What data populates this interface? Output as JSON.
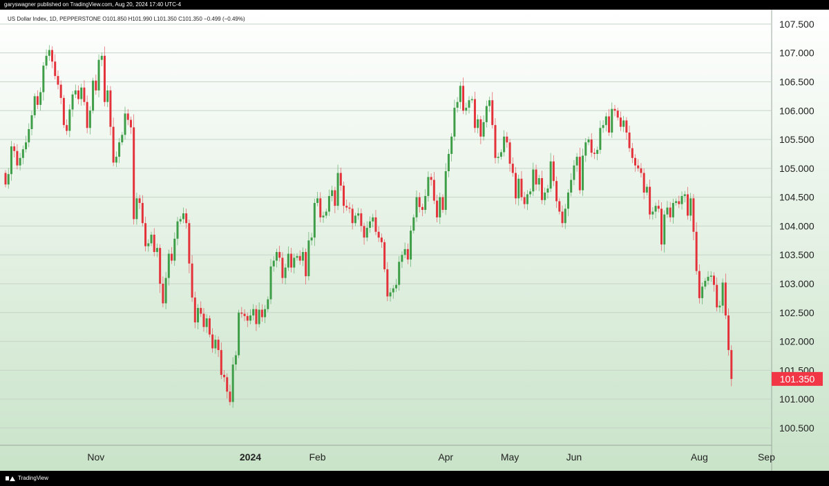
{
  "publisher_line": "garyswagner published on TradingView.com, Aug 20, 2024 17:40 UTC-4",
  "legend_line": "US Dollar Index, 1D, PEPPERSTONE  O101.850  H101.990  L101.350  C101.350  −0.499 (−0.49%)",
  "footer": {
    "brand": "TradingView"
  },
  "colors": {
    "up": "#3e9e48",
    "down": "#e4323b",
    "grid": "#c6d4c8",
    "bg_top": "#ffffff",
    "bg_bottom": "#c9e3c9",
    "price_tag": "#f23645"
  },
  "icons": {
    "logo": "tradingview-logo-icon"
  },
  "chart_data": {
    "type": "candlestick",
    "title": "",
    "xlabel": "",
    "ylabel": "",
    "ylim": [
      100.2,
      107.75
    ],
    "y_ticks": [
      100.5,
      101.0,
      101.5,
      102.0,
      102.5,
      103.0,
      103.5,
      104.0,
      104.5,
      105.0,
      105.5,
      106.0,
      106.5,
      107.0,
      107.5
    ],
    "y_tick_labels": [
      "100.500",
      "101.000",
      "101.500",
      "102.000",
      "102.500",
      "103.000",
      "103.500",
      "104.000",
      "104.500",
      "105.000",
      "105.500",
      "106.000",
      "106.500",
      "107.000",
      "107.500"
    ],
    "x_ticks": [
      {
        "label": "Nov",
        "index": 31,
        "bold": false
      },
      {
        "label": "2024",
        "index": 84,
        "bold": true
      },
      {
        "label": "Feb",
        "index": 107,
        "bold": false
      },
      {
        "label": "Apr",
        "index": 151,
        "bold": false
      },
      {
        "label": "May",
        "index": 173,
        "bold": false
      },
      {
        "label": "Jun",
        "index": 195,
        "bold": false
      },
      {
        "label": "Aug",
        "index": 238,
        "bold": false
      },
      {
        "label": "Sep",
        "index": 261,
        "bold": false
      }
    ],
    "last_price_label": "101.350",
    "last_price": 101.35,
    "closes": [
      104.72,
      104.9,
      105.38,
      105.3,
      105.05,
      105.18,
      105.33,
      105.45,
      105.68,
      105.92,
      106.25,
      106.1,
      106.32,
      106.78,
      106.95,
      107.05,
      106.85,
      106.6,
      106.45,
      106.22,
      105.75,
      105.65,
      106.02,
      106.28,
      106.35,
      106.2,
      106.4,
      106.15,
      105.7,
      106.0,
      106.52,
      106.35,
      106.88,
      106.95,
      106.15,
      106.35,
      105.72,
      105.1,
      105.2,
      105.45,
      105.58,
      105.95,
      105.84,
      105.71,
      104.12,
      104.48,
      104.4,
      104.05,
      103.65,
      103.7,
      103.85,
      103.55,
      103.62,
      103.0,
      102.66,
      103.1,
      103.52,
      103.4,
      103.78,
      104.08,
      104.12,
      104.22,
      104.05,
      103.35,
      102.76,
      102.33,
      102.58,
      102.48,
      102.25,
      102.4,
      102.12,
      101.88,
      102.03,
      101.85,
      101.42,
      101.38,
      101.13,
      100.95,
      101.6,
      101.76,
      102.5,
      102.48,
      102.44,
      102.36,
      102.45,
      102.56,
      102.3,
      102.55,
      102.42,
      102.56,
      102.73,
      103.3,
      103.4,
      103.55,
      103.45,
      103.1,
      103.28,
      103.52,
      103.28,
      103.45,
      103.48,
      103.4,
      103.55,
      103.13,
      103.75,
      103.8,
      104.4,
      104.48,
      104.15,
      104.18,
      104.25,
      104.52,
      104.62,
      104.35,
      104.92,
      104.7,
      104.35,
      104.32,
      104.3,
      104.05,
      104.18,
      104.22,
      104.0,
      103.8,
      103.97,
      104.08,
      104.15,
      103.9,
      103.8,
      103.72,
      103.25,
      102.78,
      102.85,
      102.92,
      102.98,
      103.38,
      103.5,
      103.6,
      103.42,
      103.92,
      104.15,
      104.5,
      104.33,
      104.28,
      104.52,
      104.85,
      104.8,
      104.44,
      104.15,
      104.5,
      104.28,
      104.95,
      105.25,
      105.55,
      106.05,
      106.15,
      106.43,
      106.0,
      106.05,
      106.18,
      106.2,
      105.7,
      105.85,
      105.55,
      105.8,
      106.08,
      106.18,
      105.75,
      105.18,
      105.2,
      105.28,
      105.55,
      105.45,
      105.08,
      104.92,
      104.48,
      104.82,
      104.5,
      104.38,
      104.55,
      104.6,
      104.98,
      104.72,
      104.83,
      104.45,
      104.58,
      104.65,
      105.12,
      104.78,
      104.43,
      104.25,
      104.05,
      104.3,
      104.58,
      104.8,
      105.05,
      105.2,
      104.62,
      105.22,
      105.45,
      105.5,
      105.27,
      105.25,
      105.32,
      105.7,
      105.75,
      105.9,
      105.62,
      106.03,
      106.0,
      105.88,
      105.72,
      105.83,
      105.62,
      105.35,
      105.18,
      105.05,
      105.0,
      104.92,
      104.58,
      104.68,
      104.2,
      104.25,
      104.35,
      104.3,
      103.68,
      104.2,
      104.32,
      104.15,
      104.4,
      104.43,
      104.38,
      104.52,
      104.55,
      104.18,
      104.48,
      103.9,
      103.22,
      102.75,
      102.95,
      103.05,
      103.12,
      103.14,
      102.98,
      102.59,
      102.62,
      103.02,
      102.45,
      101.85,
      101.35
    ],
    "opens_note": ""
  }
}
